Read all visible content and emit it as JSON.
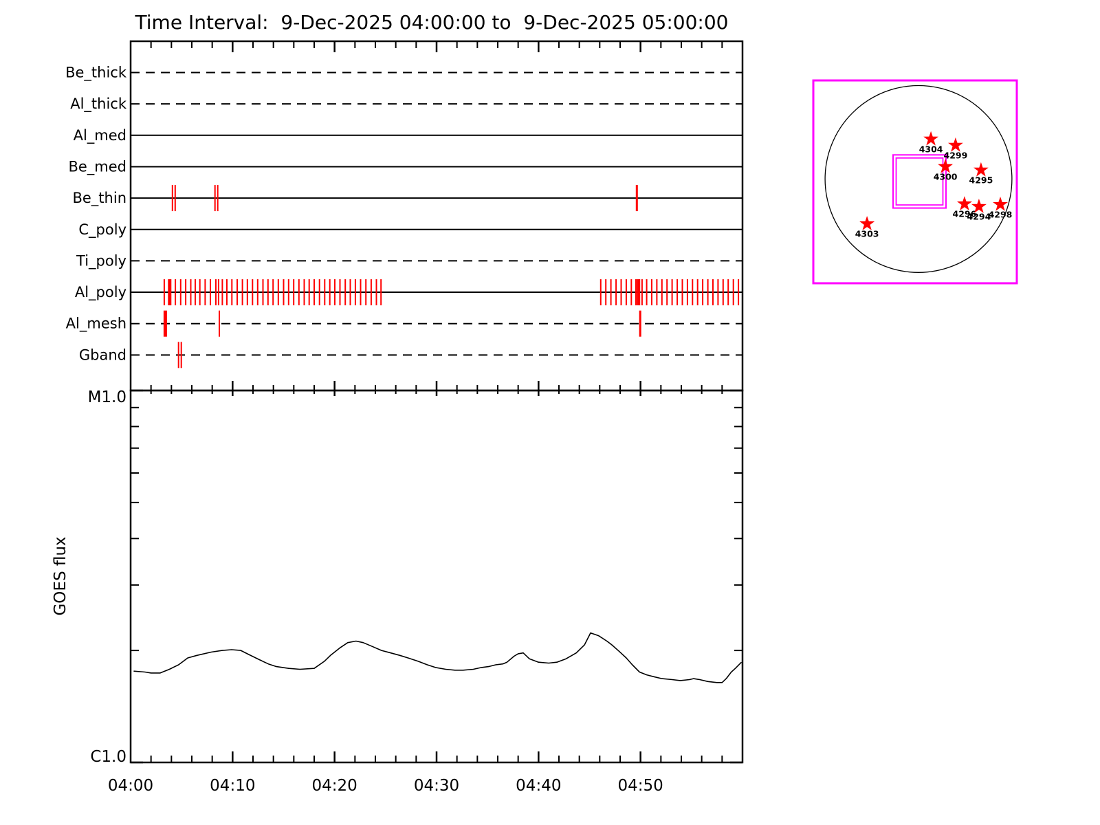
{
  "title": "Time Interval:  9-Dec-2025 04:00:00 to  9-Dec-2025 05:00:00",
  "colors": {
    "line": "#000000",
    "accent_red": "#ff0000",
    "magenta": "#ff00ff",
    "bg": "#ffffff"
  },
  "chart_data": [
    {
      "type": "timeline",
      "title": "XRT filter exposure timeline",
      "x_axis": {
        "start": "04:00",
        "end": "05:00",
        "minor_tick_minutes": 2,
        "major_tick_minutes": 10
      },
      "channels": [
        {
          "name": "Be_thick",
          "line": "dashed",
          "exposures": []
        },
        {
          "name": "Al_thick",
          "line": "dashed",
          "exposures": []
        },
        {
          "name": "Al_med",
          "line": "solid",
          "exposures": []
        },
        {
          "name": "Be_med",
          "line": "solid",
          "exposures": []
        },
        {
          "name": "Be_thin",
          "line": "solid",
          "exposures": [
            [
              4.1,
              2
            ],
            [
              4.37,
              2
            ],
            [
              8.27,
              2
            ],
            [
              8.54,
              2
            ],
            [
              49.64,
              3
            ]
          ]
        },
        {
          "name": "C_poly",
          "line": "solid",
          "exposures": []
        },
        {
          "name": "Ti_poly",
          "line": "dashed",
          "exposures": []
        },
        {
          "name": "Al_poly",
          "line": "solid",
          "exposures": [
            [
              3.3,
              2
            ],
            [
              3.83,
              5
            ],
            [
              4.39,
              2
            ],
            [
              4.91,
              2
            ],
            [
              5.4,
              2
            ],
            [
              5.9,
              2
            ],
            [
              6.34,
              2
            ],
            [
              6.79,
              2
            ],
            [
              7.31,
              2
            ],
            [
              7.82,
              2
            ],
            [
              8.36,
              2
            ],
            [
              8.62,
              2
            ],
            [
              8.99,
              2
            ],
            [
              9.44,
              2
            ],
            [
              9.93,
              2
            ],
            [
              10.45,
              2
            ],
            [
              10.96,
              2
            ],
            [
              11.45,
              2
            ],
            [
              11.95,
              2
            ],
            [
              12.46,
              2
            ],
            [
              12.98,
              2
            ],
            [
              13.47,
              2
            ],
            [
              13.97,
              2
            ],
            [
              14.48,
              2
            ],
            [
              15.0,
              2
            ],
            [
              15.49,
              2
            ],
            [
              15.99,
              2
            ],
            [
              16.5,
              2
            ],
            [
              17.02,
              2
            ],
            [
              17.51,
              2
            ],
            [
              18.0,
              2
            ],
            [
              18.52,
              2
            ],
            [
              19.03,
              2
            ],
            [
              19.53,
              2
            ],
            [
              20.02,
              2
            ],
            [
              20.53,
              2
            ],
            [
              21.05,
              2
            ],
            [
              21.54,
              2
            ],
            [
              22.04,
              2
            ],
            [
              22.55,
              2
            ],
            [
              23.07,
              2
            ],
            [
              23.59,
              2
            ],
            [
              24.1,
              2
            ],
            [
              24.55,
              2
            ],
            [
              46.1,
              2
            ],
            [
              46.6,
              2
            ],
            [
              47.1,
              2
            ],
            [
              47.6,
              2
            ],
            [
              48.1,
              2
            ],
            [
              48.6,
              2
            ],
            [
              49.1,
              2
            ],
            [
              49.55,
              2
            ],
            [
              49.8,
              5
            ],
            [
              50.15,
              2
            ],
            [
              50.6,
              2
            ],
            [
              51.1,
              2
            ],
            [
              51.6,
              2
            ],
            [
              52.1,
              2
            ],
            [
              52.6,
              2
            ],
            [
              53.1,
              2
            ],
            [
              53.6,
              2
            ],
            [
              54.1,
              2
            ],
            [
              54.6,
              2
            ],
            [
              55.1,
              2
            ],
            [
              55.6,
              2
            ],
            [
              56.1,
              2
            ],
            [
              56.6,
              2
            ],
            [
              57.1,
              2
            ],
            [
              57.6,
              2
            ],
            [
              58.1,
              2
            ],
            [
              58.6,
              2
            ],
            [
              59.1,
              2
            ],
            [
              59.6,
              2
            ]
          ]
        },
        {
          "name": "Al_mesh",
          "line": "dashed",
          "exposures": [
            [
              3.4,
              5
            ],
            [
              8.7,
              2
            ],
            [
              49.97,
              3
            ]
          ]
        },
        {
          "name": "Gband",
          "line": "dashed",
          "exposures": [
            [
              4.7,
              2
            ],
            [
              4.97,
              2
            ]
          ]
        }
      ]
    },
    {
      "type": "line",
      "ylabel": "GOES flux",
      "y_scale": "log",
      "y_top_label": "M1.0",
      "y_bottom_label": "C1.0",
      "y_minor_ticks": [
        2,
        3,
        4,
        5,
        6,
        7,
        8,
        9
      ],
      "x_tick_labels": [
        "04:00",
        "04:10",
        "04:20",
        "04:30",
        "04:40",
        "04:50"
      ],
      "points": [
        [
          0.3,
          1.76
        ],
        [
          1.4,
          1.75
        ],
        [
          2.0,
          1.74
        ],
        [
          2.9,
          1.74
        ],
        [
          3.8,
          1.78
        ],
        [
          4.7,
          1.83
        ],
        [
          5.6,
          1.91
        ],
        [
          6.5,
          1.94
        ],
        [
          7.9,
          1.98
        ],
        [
          9.0,
          2.0
        ],
        [
          9.9,
          2.01
        ],
        [
          10.8,
          2.0
        ],
        [
          11.6,
          1.95
        ],
        [
          12.6,
          1.89
        ],
        [
          13.5,
          1.84
        ],
        [
          14.3,
          1.81
        ],
        [
          15.5,
          1.79
        ],
        [
          16.6,
          1.78
        ],
        [
          18.0,
          1.79
        ],
        [
          19.0,
          1.87
        ],
        [
          19.6,
          1.94
        ],
        [
          20.5,
          2.03
        ],
        [
          21.3,
          2.1
        ],
        [
          22.1,
          2.12
        ],
        [
          22.8,
          2.1
        ],
        [
          23.7,
          2.05
        ],
        [
          24.6,
          2.0
        ],
        [
          25.5,
          1.97
        ],
        [
          26.4,
          1.94
        ],
        [
          27.2,
          1.91
        ],
        [
          28.2,
          1.87
        ],
        [
          29.1,
          1.83
        ],
        [
          29.9,
          1.8
        ],
        [
          30.9,
          1.78
        ],
        [
          31.8,
          1.77
        ],
        [
          32.6,
          1.77
        ],
        [
          33.6,
          1.78
        ],
        [
          34.4,
          1.8
        ],
        [
          35.1,
          1.81
        ],
        [
          35.8,
          1.83
        ],
        [
          36.5,
          1.84
        ],
        [
          36.9,
          1.86
        ],
        [
          37.6,
          1.93
        ],
        [
          38.0,
          1.96
        ],
        [
          38.5,
          1.97
        ],
        [
          39.1,
          1.9
        ],
        [
          40.0,
          1.86
        ],
        [
          41.0,
          1.85
        ],
        [
          41.8,
          1.86
        ],
        [
          42.7,
          1.9
        ],
        [
          43.7,
          1.97
        ],
        [
          44.5,
          2.07
        ],
        [
          45.1,
          2.23
        ],
        [
          45.9,
          2.19
        ],
        [
          46.7,
          2.12
        ],
        [
          47.2,
          2.07
        ],
        [
          47.9,
          1.99
        ],
        [
          48.6,
          1.91
        ],
        [
          49.2,
          1.83
        ],
        [
          49.9,
          1.75
        ],
        [
          50.6,
          1.72
        ],
        [
          51.3,
          1.7
        ],
        [
          52.1,
          1.68
        ],
        [
          53.1,
          1.67
        ],
        [
          53.9,
          1.66
        ],
        [
          54.8,
          1.67
        ],
        [
          55.2,
          1.68
        ],
        [
          55.8,
          1.67
        ],
        [
          56.6,
          1.65
        ],
        [
          57.5,
          1.64
        ],
        [
          58.0,
          1.64
        ],
        [
          58.4,
          1.68
        ],
        [
          58.9,
          1.75
        ],
        [
          59.3,
          1.79
        ],
        [
          59.9,
          1.86
        ]
      ]
    },
    {
      "type": "map",
      "title": "Solar disk with pointing FOV and active regions",
      "disk": {
        "cx": 0.517,
        "cy": 0.486,
        "r": 0.459
      },
      "fov": {
        "x": 0.392,
        "y": 0.367,
        "w": 0.26,
        "h": 0.262
      },
      "stars": [
        {
          "label": "4304",
          "x": 0.578,
          "y": 0.289
        },
        {
          "label": "4299",
          "x": 0.699,
          "y": 0.32
        },
        {
          "label": "4300",
          "x": 0.649,
          "y": 0.425
        },
        {
          "label": "4295",
          "x": 0.824,
          "y": 0.442
        },
        {
          "label": "4296",
          "x": 0.743,
          "y": 0.609
        },
        {
          "label": "4294",
          "x": 0.814,
          "y": 0.622
        },
        {
          "label": "4298",
          "x": 0.919,
          "y": 0.612
        },
        {
          "label": "4303",
          "x": 0.264,
          "y": 0.707
        }
      ]
    }
  ]
}
